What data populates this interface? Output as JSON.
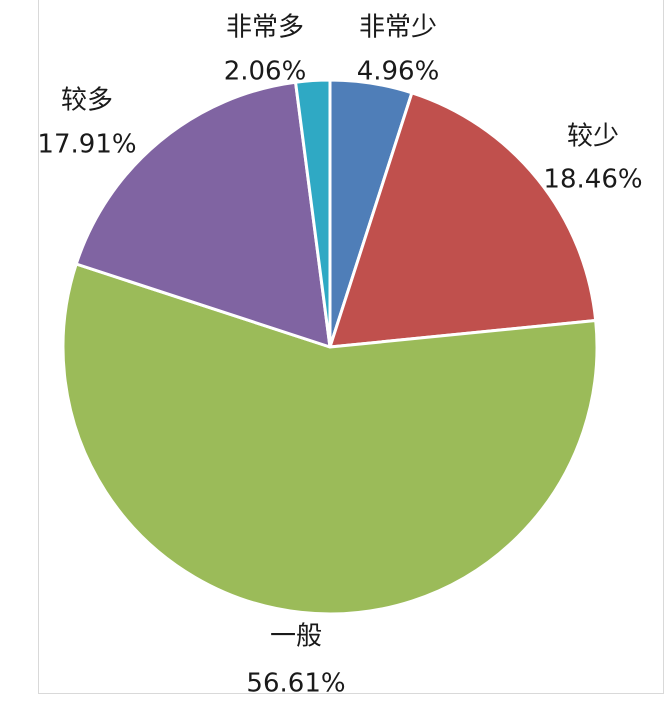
{
  "chart_data": {
    "type": "pie",
    "title": "",
    "slices": [
      {
        "name": "非常少",
        "value": 4.96,
        "label": "4.96%",
        "color": "#4f7eb8"
      },
      {
        "name": "较少",
        "value": 18.46,
        "label": "18.46%",
        "color": "#c0504d"
      },
      {
        "name": "一般",
        "value": 56.61,
        "label": "56.61%",
        "color": "#9bbb59"
      },
      {
        "name": "较多",
        "value": 17.91,
        "label": "17.91%",
        "color": "#8064a2"
      },
      {
        "name": "非常多",
        "value": 2.06,
        "label": "2.06%",
        "color": "#2fa9c4"
      }
    ],
    "start_angle": "12 o'clock",
    "direction": "clockwise",
    "legend": "none",
    "slice_border_color": "#ffffff"
  }
}
